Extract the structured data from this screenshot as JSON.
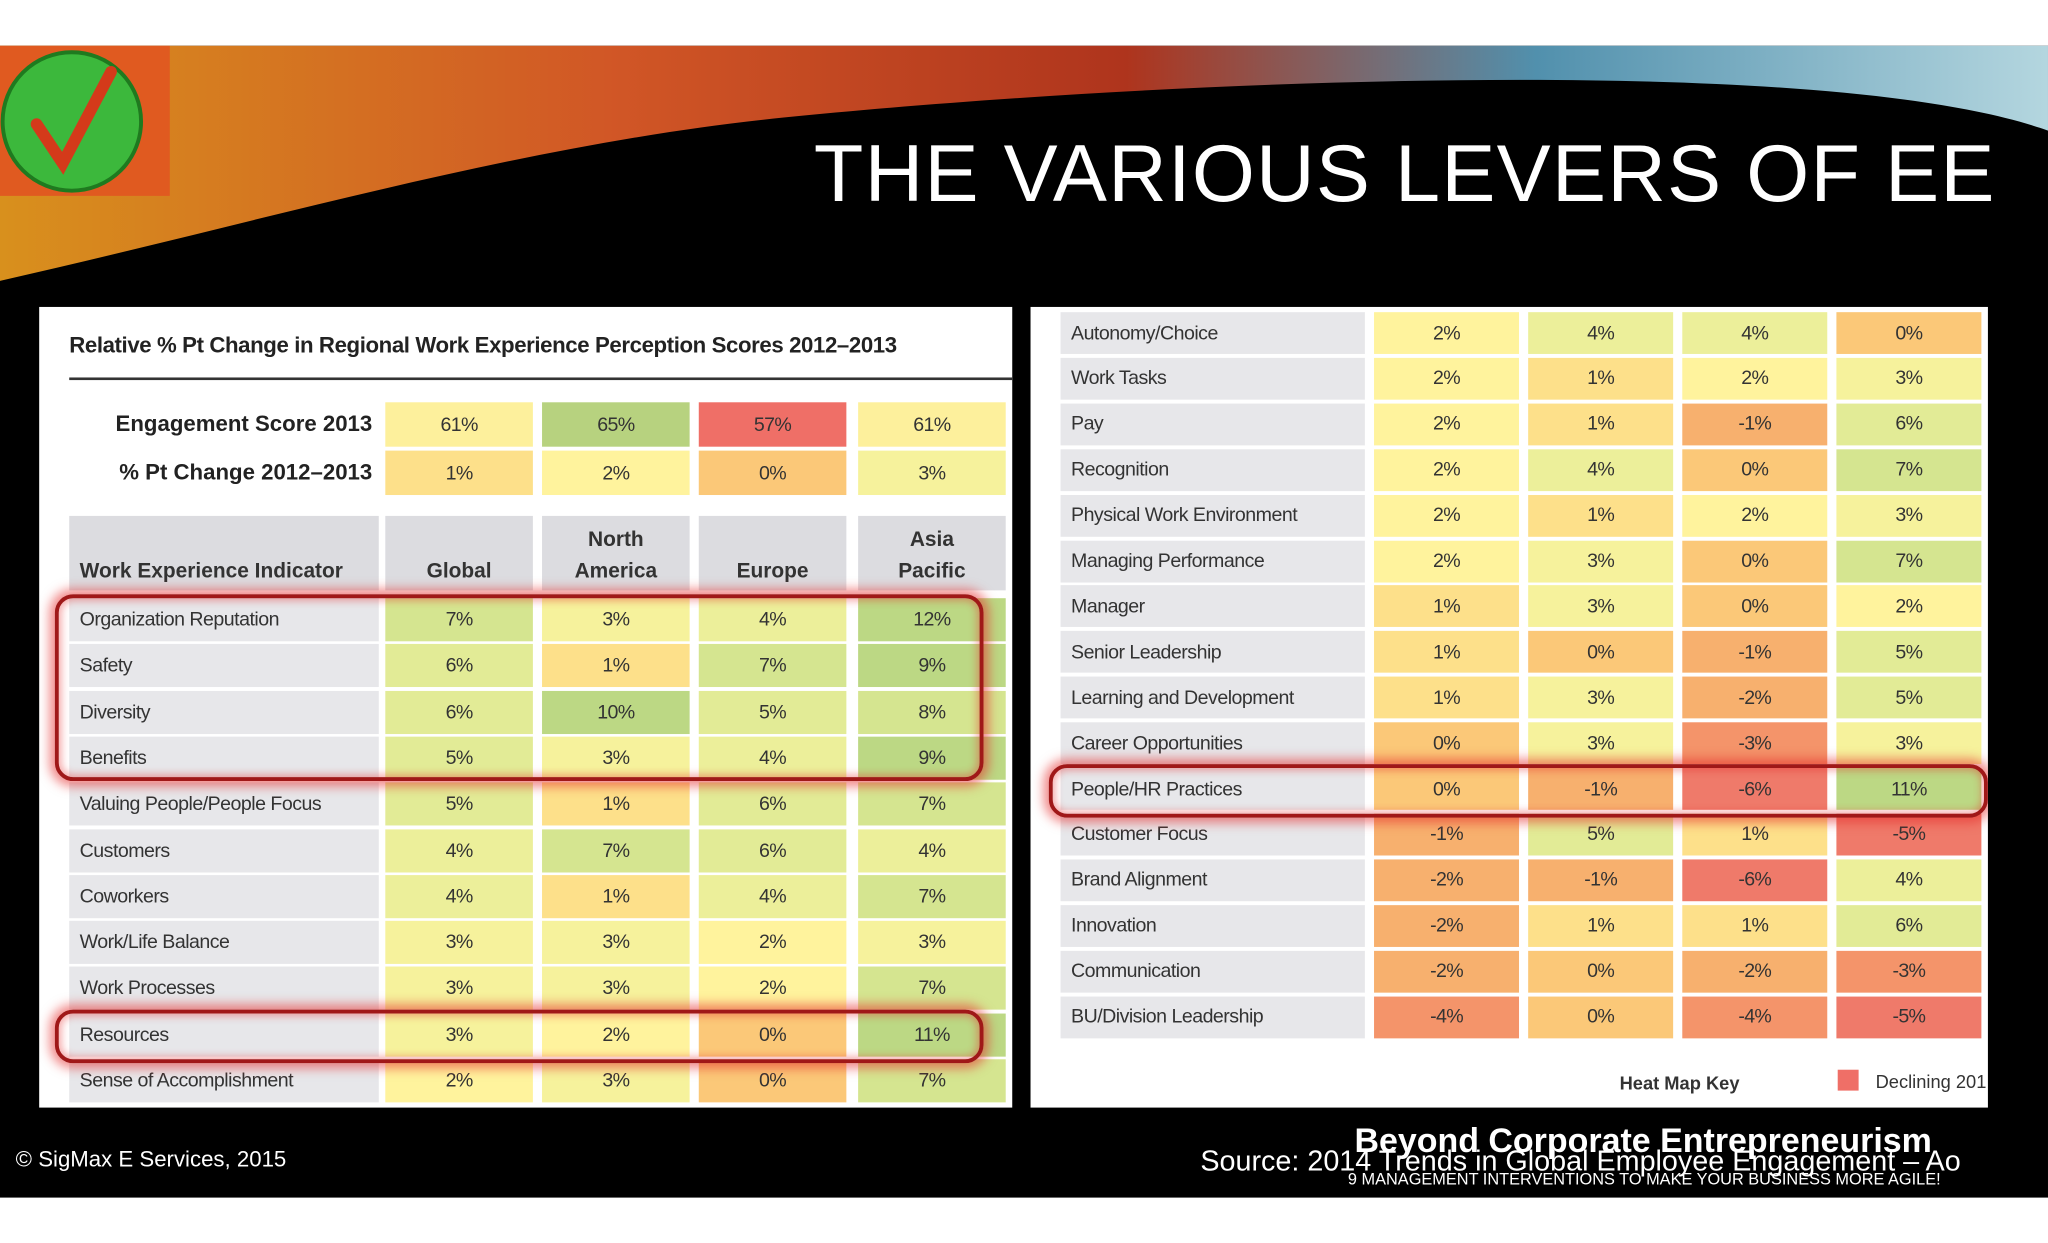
{
  "title": "THE VARIOUS LEVERS OF EE",
  "left_table": {
    "title": "Relative % Pt Change in Regional Work Experience Perception Scores 2012–2013",
    "summary": [
      {
        "label": "Engagement Score 2013",
        "cells": [
          "61%",
          "65%",
          "57%",
          "61%"
        ],
        "colors": [
          "#fdf09c",
          "#b7d27f",
          "#ef6f67",
          "#fdf09c"
        ]
      },
      {
        "label": "% Pt Change 2012–2013",
        "cells": [
          "1%",
          "2%",
          "0%",
          "3%"
        ]
      }
    ],
    "header": [
      "Work Experience Indicator",
      "Global",
      "North America",
      "Europe",
      "Asia Pacific"
    ],
    "rows": [
      [
        "Organization Reputation",
        "7%",
        "3%",
        "4%",
        "12%"
      ],
      [
        "Safety",
        "6%",
        "1%",
        "7%",
        "9%"
      ],
      [
        "Diversity",
        "6%",
        "10%",
        "5%",
        "8%"
      ],
      [
        "Benefits",
        "5%",
        "3%",
        "4%",
        "9%"
      ],
      [
        "Valuing People/People Focus",
        "5%",
        "1%",
        "6%",
        "7%"
      ],
      [
        "Customers",
        "4%",
        "7%",
        "6%",
        "4%"
      ],
      [
        "Coworkers",
        "4%",
        "1%",
        "4%",
        "7%"
      ],
      [
        "Work/Life Balance",
        "3%",
        "3%",
        "2%",
        "3%"
      ],
      [
        "Work Processes",
        "3%",
        "3%",
        "2%",
        "7%"
      ],
      [
        "Resources",
        "3%",
        "2%",
        "0%",
        "11%"
      ],
      [
        "Sense of Accomplishment",
        "2%",
        "3%",
        "0%",
        "7%"
      ]
    ]
  },
  "right_table": {
    "rows": [
      [
        "Autonomy/Choice",
        "2%",
        "4%",
        "4%",
        "0%"
      ],
      [
        "Work Tasks",
        "2%",
        "1%",
        "2%",
        "3%"
      ],
      [
        "Pay",
        "2%",
        "1%",
        "-1%",
        "6%"
      ],
      [
        "Recognition",
        "2%",
        "4%",
        "0%",
        "7%"
      ],
      [
        "Physical Work Environment",
        "2%",
        "1%",
        "2%",
        "3%"
      ],
      [
        "Managing Performance",
        "2%",
        "3%",
        "0%",
        "7%"
      ],
      [
        "Manager",
        "1%",
        "3%",
        "0%",
        "2%"
      ],
      [
        "Senior Leadership",
        "1%",
        "0%",
        "-1%",
        "5%"
      ],
      [
        "Learning and Development",
        "1%",
        "3%",
        "-2%",
        "5%"
      ],
      [
        "Career Opportunities",
        "0%",
        "3%",
        "-3%",
        "3%"
      ],
      [
        "People/HR Practices",
        "0%",
        "-1%",
        "-6%",
        "11%"
      ],
      [
        "Customer Focus",
        "-1%",
        "5%",
        "1%",
        "-5%"
      ],
      [
        "Brand Alignment",
        "-2%",
        "-1%",
        "-6%",
        "4%"
      ],
      [
        "Innovation",
        "-2%",
        "1%",
        "1%",
        "6%"
      ],
      [
        "Communication",
        "-2%",
        "0%",
        "-2%",
        "-3%"
      ],
      [
        "BU/Division Leadership",
        "-4%",
        "0%",
        "-4%",
        "-5%"
      ]
    ]
  },
  "heat_map_key": {
    "label": "Heat Map Key",
    "declining": "Declining 201"
  },
  "footer": {
    "copyright": "© SigMax E Services, 2015",
    "source": "Source: 2014 Trends in Global Employee Engagement – Ao",
    "brand": "Beyond Corporate Entrepreneurism",
    "tagline": "9 MANAGEMENT INTERVENTIONS TO MAKE YOUR BUSINESS MORE AGILE!"
  }
}
